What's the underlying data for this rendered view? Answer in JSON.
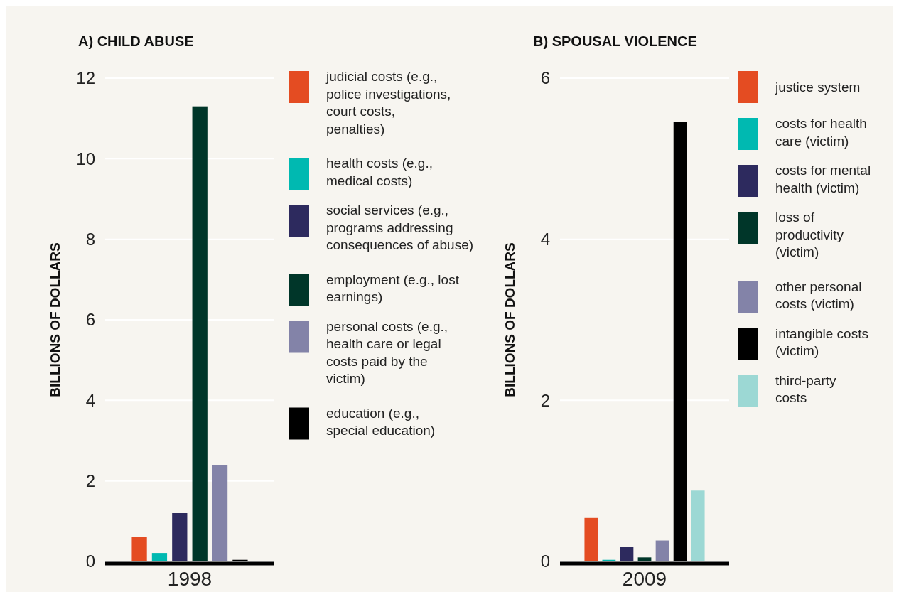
{
  "chart_data": [
    {
      "type": "bar",
      "title": "A) CHILD ABUSE",
      "ylabel": "BILLIONS OF DOLLARS",
      "categories": [
        "1998"
      ],
      "ylim": [
        0,
        12
      ],
      "yticks": [
        0,
        2,
        4,
        6,
        8,
        10,
        12
      ],
      "grid": "y",
      "legend": "right",
      "series": [
        {
          "name": "judicial costs (e.g., police investigations, court costs, penalties)",
          "color": "#e44c22",
          "values": [
            0.6
          ]
        },
        {
          "name": "health costs (e.g., medical costs)",
          "color": "#00b9b1",
          "values": [
            0.21
          ]
        },
        {
          "name": "social services (e.g., programs addressing consequences of abuse)",
          "color": "#2d2a5e",
          "values": [
            1.2
          ]
        },
        {
          "name": "employment (e.g., lost earnings)",
          "color": "#003629",
          "values": [
            11.3
          ]
        },
        {
          "name": "personal costs (e.g., health care or legal costs paid by the victim)",
          "color": "#8383a8",
          "values": [
            2.4
          ]
        },
        {
          "name": "education (e.g., special education)",
          "color": "#000000",
          "values": [
            0.04
          ]
        }
      ]
    },
    {
      "type": "bar",
      "title": "B) SPOUSAL VIOLENCE",
      "ylabel": "BILLIONS OF DOLLARS",
      "categories": [
        "2009"
      ],
      "ylim": [
        0,
        6
      ],
      "yticks": [
        0,
        2,
        4,
        6
      ],
      "grid": "y",
      "legend": "right",
      "series": [
        {
          "name": "justice system",
          "color": "#e44c22",
          "values": [
            0.54
          ]
        },
        {
          "name": "costs for health care (victim)",
          "color": "#00b9b1",
          "values": [
            0.02
          ]
        },
        {
          "name": "costs for mental health (victim)",
          "color": "#2d2a5e",
          "values": [
            0.18
          ]
        },
        {
          "name": "loss of productivity (victim)",
          "color": "#003629",
          "values": [
            0.05
          ]
        },
        {
          "name": "other personal costs (victim)",
          "color": "#8383a8",
          "values": [
            0.26
          ]
        },
        {
          "name": "intangible costs (victim)",
          "color": "#000000",
          "values": [
            5.46
          ]
        },
        {
          "name": "third-party costs",
          "color": "#9cd8d4",
          "values": [
            0.88
          ]
        }
      ]
    }
  ]
}
